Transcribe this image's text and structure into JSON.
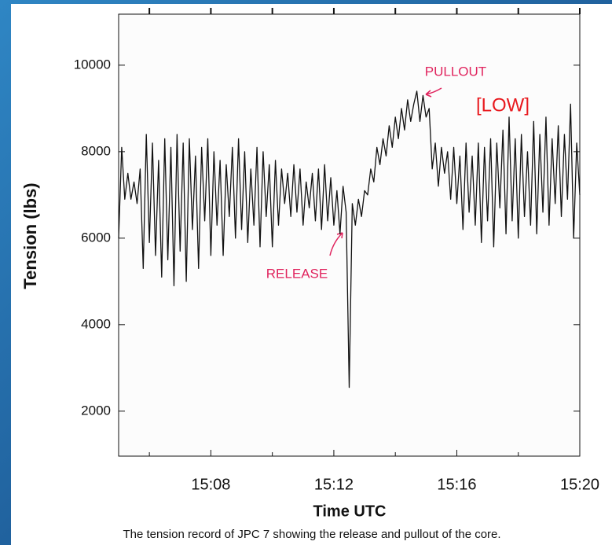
{
  "chart_data": {
    "type": "line",
    "ylabel": "Tension (lbs)",
    "xlabel": "Time UTC",
    "caption": "The tension record of JPC 7 showing the release and pullout of the core.",
    "annotations": [
      "PULLOUT",
      "[LOW]",
      "RELEASE"
    ],
    "xlim": [
      905,
      920
    ],
    "xticks": [
      {
        "value": 908,
        "label": "15:08"
      },
      {
        "value": 912,
        "label": "15:12"
      },
      {
        "value": 916,
        "label": "15:16"
      },
      {
        "value": 920,
        "label": "15:20"
      }
    ],
    "xminorticks": [
      906,
      910,
      914,
      918
    ],
    "ylim": [
      960,
      11180
    ],
    "yticks": [
      2000,
      4000,
      6000,
      8000,
      10000
    ],
    "grid": false,
    "series": [
      {
        "name": "Tension",
        "color": "#111111",
        "x": [
          905,
          905.1,
          905.2,
          905.3,
          905.4,
          905.5,
          905.6,
          905.7,
          905.8,
          905.9,
          906,
          906.1,
          906.2,
          906.3,
          906.4,
          906.5,
          906.6,
          906.7,
          906.8,
          906.9,
          907,
          907.1,
          907.2,
          907.3,
          907.4,
          907.5,
          907.6,
          907.7,
          907.8,
          907.9,
          908,
          908.1,
          908.2,
          908.3,
          908.4,
          908.5,
          908.6,
          908.7,
          908.8,
          908.9,
          909,
          909.1,
          909.2,
          909.3,
          909.4,
          909.5,
          909.6,
          909.7,
          909.8,
          909.9,
          910,
          910.1,
          910.2,
          910.3,
          910.4,
          910.5,
          910.6,
          910.7,
          910.8,
          910.9,
          911,
          911.1,
          911.2,
          911.3,
          911.4,
          911.5,
          911.6,
          911.7,
          911.8,
          911.9,
          912,
          912.1,
          912.2,
          912.3,
          912.4,
          912.5,
          912.6,
          912.7,
          912.8,
          912.9,
          913,
          913.1,
          913.2,
          913.3,
          913.4,
          913.5,
          913.6,
          913.7,
          913.8,
          913.9,
          914,
          914.1,
          914.2,
          914.3,
          914.4,
          914.5,
          914.6,
          914.7,
          914.8,
          914.9,
          915,
          915.1,
          915.2,
          915.3,
          915.4,
          915.5,
          915.6,
          915.7,
          915.8,
          915.9,
          916,
          916.1,
          916.2,
          916.3,
          916.4,
          916.5,
          916.6,
          916.7,
          916.8,
          916.9,
          917,
          917.1,
          917.2,
          917.3,
          917.4,
          917.5,
          917.6,
          917.7,
          917.8,
          917.9,
          918,
          918.1,
          918.2,
          918.3,
          918.4,
          918.5,
          918.6,
          918.7,
          918.8,
          918.9,
          919,
          919.1,
          919.2,
          919.3,
          919.4,
          919.5,
          919.6,
          919.7,
          919.8,
          919.9,
          920
        ],
        "values": [
          6000,
          8100,
          6900,
          7500,
          6900,
          7300,
          6800,
          7600,
          5300,
          8400,
          5900,
          8200,
          5600,
          7800,
          5100,
          8300,
          5500,
          8100,
          4900,
          8400,
          5700,
          8200,
          5000,
          8300,
          6200,
          7900,
          5300,
          8100,
          6400,
          8300,
          5600,
          8000,
          6300,
          7800,
          5600,
          7700,
          6500,
          8100,
          6000,
          8300,
          6200,
          8000,
          5900,
          7600,
          6300,
          8100,
          5800,
          8000,
          6500,
          7700,
          5800,
          7800,
          6300,
          7600,
          6800,
          7500,
          6500,
          7700,
          6600,
          7600,
          6300,
          7300,
          6700,
          7500,
          6400,
          7600,
          6200,
          7700,
          6400,
          7400,
          6300,
          7100,
          6100,
          7200,
          6600,
          2550,
          6800,
          6300,
          6900,
          6500,
          7100,
          7000,
          7600,
          7300,
          8100,
          7700,
          8300,
          7900,
          8600,
          8100,
          8800,
          8300,
          9000,
          8500,
          9200,
          8700,
          9100,
          9400,
          8700,
          9300,
          8800,
          9000,
          7600,
          8200,
          7200,
          8100,
          7500,
          8000,
          6900,
          8100,
          6800,
          7900,
          6200,
          8200,
          6600,
          7900,
          6300,
          8200,
          5900,
          8100,
          6400,
          8300,
          5800,
          8200,
          6700,
          8500,
          6100,
          8800,
          6400,
          8300,
          6000,
          8400,
          6500,
          8000,
          6300,
          8700,
          6100,
          8400,
          6600,
          8800,
          6300,
          8300,
          6800,
          8600,
          6500,
          8400,
          6900,
          9100,
          6000,
          8200,
          7000
        ]
      }
    ]
  }
}
